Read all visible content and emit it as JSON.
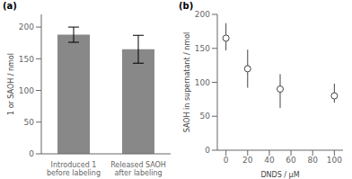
{
  "chart_data": [
    {
      "type": "bar",
      "title": "(a)",
      "categories": [
        "Introduced 1\nbefore labeling",
        "Released SAOH\nafter labeling"
      ],
      "values": [
        188,
        165
      ],
      "errors": [
        12,
        22
      ],
      "color": "#888888",
      "ylabel": "1 or SAOH / nmol",
      "ylim": [
        0,
        220
      ],
      "yticks": [
        0,
        50,
        100,
        150,
        200
      ],
      "grid": false
    },
    {
      "type": "scatter",
      "title": "(b)",
      "x": [
        0,
        20,
        50,
        100
      ],
      "values": [
        165,
        120,
        90,
        80
      ],
      "errors_low": [
        18,
        28,
        28,
        10
      ],
      "errors_high": [
        22,
        28,
        22,
        18
      ],
      "color": "#444444",
      "marker": "circle",
      "xlabel": "DNDS / μM",
      "ylabel": "SAOH in supernatant / nmol",
      "xlim": [
        -8,
        108
      ],
      "xticks": [
        0,
        20,
        40,
        60,
        80,
        100
      ],
      "ylim": [
        0,
        200
      ],
      "yticks": [
        0,
        50,
        100,
        150,
        200
      ],
      "grid": false
    }
  ]
}
